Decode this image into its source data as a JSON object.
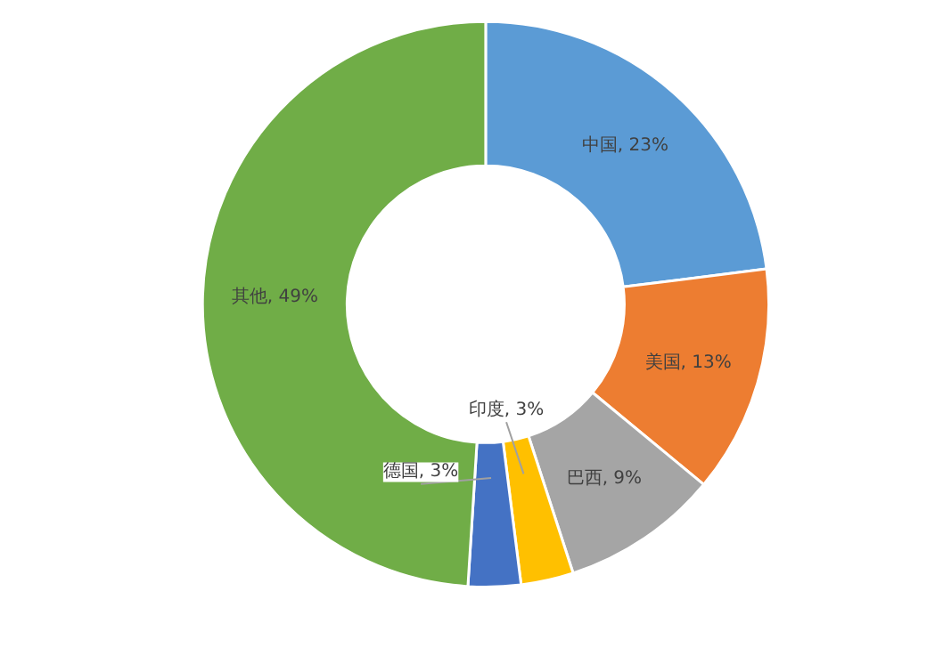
{
  "chart_data": {
    "type": "donut",
    "categories": [
      "中国",
      "美国",
      "巴西",
      "印度",
      "德国",
      "其他"
    ],
    "values": [
      23,
      13,
      9,
      3,
      3,
      49
    ],
    "colors": [
      "#5b9bd5",
      "#ed7d31",
      "#a5a5a5",
      "#ffc000",
      "#4472c4",
      "#70ad47"
    ],
    "value_labels": [
      "23%",
      "13%",
      "9%",
      "3%",
      "3%",
      "49%"
    ]
  }
}
